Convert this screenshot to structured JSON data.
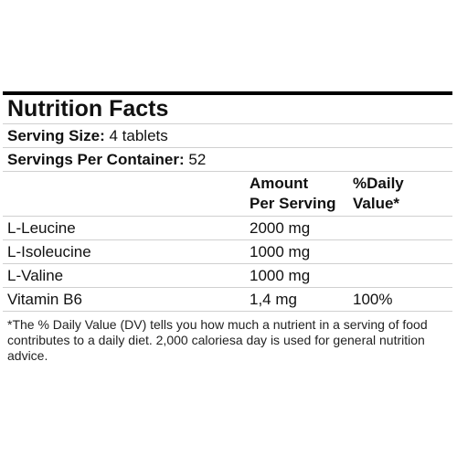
{
  "nutrition": {
    "title": "Nutrition Facts",
    "serving_size_label": "Serving Size:",
    "serving_size_value": "4 tablets",
    "servings_per_container_label": "Servings Per Container:",
    "servings_per_container_value": "52",
    "header": {
      "amount_line1": "Amount",
      "amount_line2": "Per Serving",
      "dv_line1": "%Daily",
      "dv_line2": "Value*"
    },
    "rows": [
      {
        "name": "L-Leucine",
        "amount": "2000 mg",
        "dv": ""
      },
      {
        "name": "L-Isoleucine",
        "amount": "1000 mg",
        "dv": ""
      },
      {
        "name": "L-Valine",
        "amount": "1000 mg",
        "dv": ""
      },
      {
        "name": "Vitamin B6",
        "amount": "1,4 mg",
        "dv": "100%"
      }
    ],
    "footnote": "*The % Daily Value (DV) tells you how much a nutrient in a serving of food contributes to a daily diet. 2,000 caloriesa day is used for general nutrition advice."
  }
}
